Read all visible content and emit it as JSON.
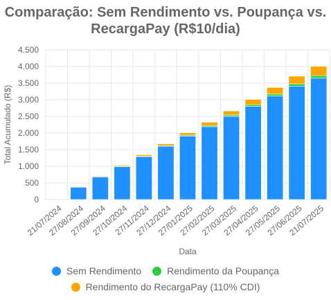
{
  "chart_data": {
    "type": "bar",
    "stacked": true,
    "title_lines": [
      "Comparação: Sem Rendimento vs. Poupança vs.",
      "RecargaPay (R$10/dia)"
    ],
    "xlabel": "Data",
    "ylabel": "Total Acumulado (R$)",
    "ylim": [
      0,
      4500
    ],
    "yticks": [
      0,
      500,
      1000,
      1500,
      2000,
      2500,
      3000,
      3500,
      4000,
      4500
    ],
    "ytick_labels": [
      "0",
      "500",
      "1.000",
      "1.500",
      "2.000",
      "2.500",
      "3.000",
      "3.500",
      "4.000",
      "4.500"
    ],
    "categories": [
      "21/07/2024",
      "27/08/2024",
      "27/09/2024",
      "27/10/2024",
      "27/11/2024",
      "27/12/2024",
      "27/01/2025",
      "27/02/2025",
      "27/03/2025",
      "27/04/2025",
      "27/05/2025",
      "27/06/2025",
      "21/07/2025"
    ],
    "grid": true,
    "legend_position": "bottom",
    "series": [
      {
        "name": "Sem Rendimento",
        "color": "#1e90ff",
        "values": [
          0,
          370,
          680,
          990,
          1290,
          1600,
          1910,
          2190,
          2500,
          2800,
          3110,
          3410,
          3650
        ]
      },
      {
        "name": "Rendimento da Poupança",
        "color": "#2ecc40",
        "values": [
          0,
          3,
          7,
          11,
          16,
          22,
          28,
          35,
          43,
          51,
          60,
          69,
          76
        ]
      },
      {
        "name": "Rendimento do RecargaPay (110% CDI)",
        "color": "#ffa500",
        "values": [
          0,
          10,
          20,
          30,
          40,
          55,
          70,
          100,
          120,
          160,
          200,
          230,
          280
        ]
      }
    ]
  }
}
